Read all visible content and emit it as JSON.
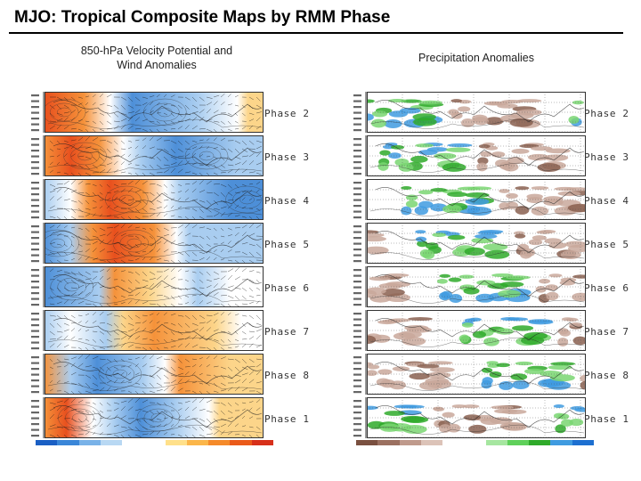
{
  "title": "MJO: Tropical Composite Maps by RMM Phase",
  "left_column": {
    "heading_line1": "850-hPa Velocity Potential and",
    "heading_line2": "Wind Anomalies",
    "colorbar": [
      "#1a5fc4",
      "#3a86d8",
      "#79b2e8",
      "#b8d8f3",
      "#ffffff",
      "#ffffff",
      "#ffe08a",
      "#fbb64a",
      "#f58a2a",
      "#ea5a1a",
      "#d7301a"
    ]
  },
  "right_column": {
    "heading": "Precipitation Anomalies",
    "colorbar": [
      "#7a5040",
      "#9b7060",
      "#bf9a8c",
      "#dcc3b8",
      "#ffffff",
      "#ffffff",
      "#a6e6a0",
      "#5fd05a",
      "#2faa2a",
      "#3f9be0",
      "#1d6fd0"
    ]
  },
  "phases": [
    "Phase 2",
    "Phase 3",
    "Phase 4",
    "Phase 5",
    "Phase 6",
    "Phase 7",
    "Phase 8",
    "Phase 1"
  ],
  "colors": {
    "divergent": "#f0803a",
    "convergent": "#4d8fd8",
    "wet": "#3fc24a",
    "dry": "#a07a6c"
  }
}
